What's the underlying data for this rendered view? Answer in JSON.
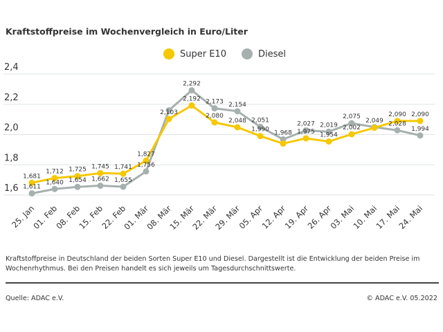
{
  "chart_data": {
    "type": "line",
    "title": "Kraftstoffpreise im Wochenvergleich in Euro/Liter",
    "categories": [
      "25. Jan",
      "01. Feb",
      "08. Feb",
      "15. Feb",
      "22. Feb",
      "01. Mär",
      "08. Mär",
      "15. Mär",
      "22. Mär",
      "29. Mär",
      "05. Apr",
      "12. Apr",
      "19. Apr",
      "26. Apr",
      "03. Mai",
      "10. Mai",
      "17. Mai",
      "24. Mai"
    ],
    "yticks": [
      "1,6",
      "1,8",
      "2,0",
      "2,2",
      "2,4"
    ],
    "ylim": [
      1.6,
      2.4
    ],
    "grid": true,
    "legend_placement": "top-center",
    "series": [
      {
        "name": "Super E10",
        "color": "#f5c800",
        "values": [
          1.681,
          1.712,
          1.725,
          1.745,
          1.741,
          1.827,
          2.103,
          2.192,
          2.08,
          2.048,
          1.99,
          1.94,
          1.975,
          1.954,
          2.002,
          2.045,
          2.09,
          2.09
        ],
        "labels": [
          "1,681",
          "1,712",
          "1,725",
          "1,745",
          "1,741",
          "1,827",
          "2,103",
          "2,192",
          "2,080",
          "2,048",
          "1,990",
          null,
          "1,975",
          "1,954",
          "2,002",
          null,
          "2,090",
          "2,090"
        ]
      },
      {
        "name": "Diesel",
        "color": "#a6b0ae",
        "values": [
          1.611,
          1.64,
          1.654,
          1.662,
          1.655,
          1.756,
          2.16,
          2.292,
          2.173,
          2.154,
          2.051,
          1.968,
          2.027,
          2.019,
          2.075,
          2.049,
          2.028,
          1.994
        ],
        "labels": [
          "1,611",
          "1,640",
          "1,654",
          "1,662",
          "1,655",
          "1,756",
          null,
          "2,292",
          "2,173",
          "2,154",
          "2,051",
          "1,968",
          "2,027",
          "2,019",
          "2,075",
          "2,049",
          "2,028",
          "1,994"
        ]
      }
    ]
  },
  "caption": "Kraftstoffpreise in Deutschland der beiden Sorten Super E10 und Diesel. Dargestellt ist die Entwicklung der beiden Preise im Wochenrhythmus. Bei den Preisen handelt es sich jeweils um Tagesdurchschnittswerte.",
  "source": "Quelle: ADAC e.V.",
  "copyright": "© ADAC e.V. 05.2022"
}
